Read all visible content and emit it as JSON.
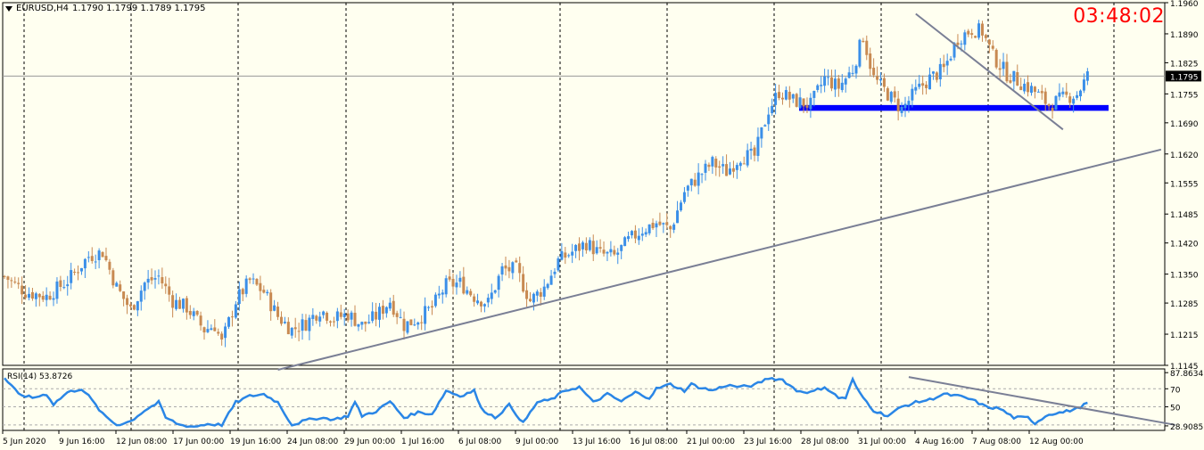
{
  "header": {
    "symbol": "EURUSD,H4",
    "ohlc": "1.1790 1.1799 1.1789 1.1795",
    "countdown": "03:48:02"
  },
  "colors": {
    "background": "#fffff0",
    "bull": "#3b8fe8",
    "bear": "#c88a52",
    "trendline": "#7a7f95",
    "support_zone": "#0000ff",
    "rsi_line": "#2a86e6",
    "current_price_line": "#999999",
    "countdown": "#ff0000"
  },
  "chart_data": [
    {
      "type": "candlestick",
      "title": "EURUSD,H4",
      "ylim": [
        1.1145,
        1.196
      ],
      "y_ticks": [
        "1.1960",
        "1.1890",
        "1.1825",
        "1.1795",
        "1.1755",
        "1.1690",
        "1.1620",
        "1.1555",
        "1.1485",
        "1.1420",
        "1.1350",
        "1.1285",
        "1.1215",
        "1.1145"
      ],
      "current_price": "1.1795",
      "x_ticks": [
        "5 Jun 2020",
        "9 Jun 16:00",
        "12 Jun 08:00",
        "17 Jun 00:00",
        "19 Jun 16:00",
        "24 Jun 08:00",
        "29 Jun 00:00",
        "1 Jul 16:00",
        "6 Jul 08:00",
        "9 Jul 00:00",
        "13 Jul 16:00",
        "16 Jul 08:00",
        "21 Jul 00:00",
        "23 Jul 16:00",
        "28 Jul 08:00",
        "31 Jul 00:00",
        "4 Aug 16:00",
        "7 Aug 08:00",
        "12 Aug 00:00"
      ],
      "close_path": [
        [
          0,
          1.1345
        ],
        [
          6,
          1.131
        ],
        [
          12,
          1.13
        ],
        [
          18,
          1.1335
        ],
        [
          24,
          1.139
        ],
        [
          28,
          1.14
        ],
        [
          32,
          1.132
        ],
        [
          36,
          1.127
        ],
        [
          40,
          1.133
        ],
        [
          44,
          1.1345
        ],
        [
          48,
          1.129
        ],
        [
          52,
          1.1275
        ],
        [
          57,
          1.1225
        ],
        [
          60,
          1.1235
        ],
        [
          62,
          1.1195
        ],
        [
          66,
          1.129
        ],
        [
          70,
          1.1335
        ],
        [
          74,
          1.131
        ],
        [
          78,
          1.1255
        ],
        [
          82,
          1.1225
        ],
        [
          86,
          1.124
        ],
        [
          90,
          1.127
        ],
        [
          94,
          1.125
        ],
        [
          98,
          1.126
        ],
        [
          102,
          1.1235
        ],
        [
          106,
          1.1255
        ],
        [
          110,
          1.129
        ],
        [
          114,
          1.1235
        ],
        [
          118,
          1.125
        ],
        [
          122,
          1.1275
        ],
        [
          126,
          1.1325
        ],
        [
          130,
          1.133
        ],
        [
          134,
          1.13
        ],
        [
          138,
          1.1285
        ],
        [
          142,
          1.136
        ],
        [
          146,
          1.136
        ],
        [
          150,
          1.129
        ],
        [
          154,
          1.132
        ],
        [
          158,
          1.138
        ],
        [
          162,
          1.14
        ],
        [
          166,
          1.142
        ],
        [
          170,
          1.1395
        ],
        [
          174,
          1.139
        ],
        [
          178,
          1.1425
        ],
        [
          182,
          1.145
        ],
        [
          186,
          1.1465
        ],
        [
          190,
          1.145
        ],
        [
          194,
          1.1535
        ],
        [
          198,
          1.157
        ],
        [
          202,
          1.16
        ],
        [
          206,
          1.158
        ],
        [
          210,
          1.1615
        ],
        [
          214,
          1.1615
        ],
        [
          218,
          1.172
        ],
        [
          221,
          1.176
        ],
        [
          225,
          1.174
        ],
        [
          230,
          1.173
        ],
        [
          234,
          1.179
        ],
        [
          238,
          1.177
        ],
        [
          242,
          1.181
        ],
        [
          245,
          1.1885
        ],
        [
          248,
          1.179
        ],
        [
          252,
          1.1755
        ],
        [
          256,
          1.172
        ],
        [
          260,
          1.176
        ],
        [
          264,
          1.179
        ],
        [
          268,
          1.181
        ],
        [
          272,
          1.188
        ],
        [
          276,
          1.19
        ],
        [
          279,
          1.1895
        ],
        [
          282,
          1.184
        ],
        [
          286,
          1.18
        ],
        [
          290,
          1.178
        ],
        [
          294,
          1.176
        ],
        [
          298,
          1.173
        ],
        [
          302,
          1.1745
        ],
        [
          306,
          1.1755
        ],
        [
          309,
          1.1795
        ]
      ],
      "support_zone": [
        1.1717,
        1.173
      ],
      "trendlines": [
        {
          "x1": 78,
          "y1": 1.1135,
          "x2": 330,
          "y2": 1.163
        },
        {
          "x1": 260,
          "y1": 1.1935,
          "x2": 302,
          "y2": 1.1675
        }
      ]
    },
    {
      "type": "line",
      "title": "RSI(14) 53.8726",
      "ylim": [
        23.9,
        92
      ],
      "y_ticks": [
        "87.8634",
        "70",
        "50",
        "28.9085"
      ],
      "levels": [
        70,
        50,
        30
      ],
      "series": [
        {
          "values_path": [
            [
              0,
              82
            ],
            [
              4,
              64
            ],
            [
              8,
              60
            ],
            [
              12,
              64
            ],
            [
              14,
              53
            ],
            [
              18,
              66
            ],
            [
              22,
              70
            ],
            [
              24,
              62
            ],
            [
              26,
              52
            ],
            [
              28,
              42
            ],
            [
              32,
              30
            ],
            [
              36,
              34
            ],
            [
              40,
              46
            ],
            [
              44,
              55
            ],
            [
              46,
              38
            ],
            [
              50,
              30
            ],
            [
              54,
              28
            ],
            [
              58,
              31
            ],
            [
              62,
              30
            ],
            [
              66,
              55
            ],
            [
              70,
              62
            ],
            [
              74,
              64
            ],
            [
              78,
              55
            ],
            [
              82,
              30
            ],
            [
              86,
              35
            ],
            [
              90,
              38
            ],
            [
              94,
              36
            ],
            [
              98,
              40
            ],
            [
              100,
              55
            ],
            [
              102,
              40
            ],
            [
              106,
              45
            ],
            [
              110,
              56
            ],
            [
              114,
              38
            ],
            [
              118,
              44
            ],
            [
              122,
              42
            ],
            [
              126,
              68
            ],
            [
              130,
              62
            ],
            [
              134,
              68
            ],
            [
              136,
              48
            ],
            [
              140,
              38
            ],
            [
              144,
              52
            ],
            [
              148,
              32
            ],
            [
              152,
              55
            ],
            [
              156,
              58
            ],
            [
              160,
              68
            ],
            [
              164,
              72
            ],
            [
              168,
              55
            ],
            [
              172,
              64
            ],
            [
              176,
              56
            ],
            [
              180,
              66
            ],
            [
              184,
              60
            ],
            [
              186,
              70
            ],
            [
              190,
              75
            ],
            [
              194,
              68
            ],
            [
              196,
              75
            ],
            [
              198,
              72
            ],
            [
              202,
              68
            ],
            [
              206,
              74
            ],
            [
              210,
              72
            ],
            [
              214,
              74
            ],
            [
              218,
              82
            ],
            [
              222,
              80
            ],
            [
              226,
              68
            ],
            [
              230,
              66
            ],
            [
              234,
              72
            ],
            [
              238,
              60
            ],
            [
              240,
              60
            ],
            [
              242,
              80
            ],
            [
              244,
              65
            ],
            [
              248,
              46
            ],
            [
              252,
              40
            ],
            [
              256,
              50
            ],
            [
              260,
              55
            ],
            [
              264,
              58
            ],
            [
              268,
              64
            ],
            [
              272,
              62
            ],
            [
              276,
              58
            ],
            [
              280,
              50
            ],
            [
              284,
              48
            ],
            [
              288,
              38
            ],
            [
              292,
              38
            ],
            [
              294,
              32
            ],
            [
              298,
              42
            ],
            [
              302,
              44
            ],
            [
              306,
              48
            ],
            [
              309,
              54
            ]
          ]
        }
      ],
      "trendline": {
        "x1": 258,
        "y1": 83,
        "x2": 334,
        "y2": 30
      }
    }
  ]
}
